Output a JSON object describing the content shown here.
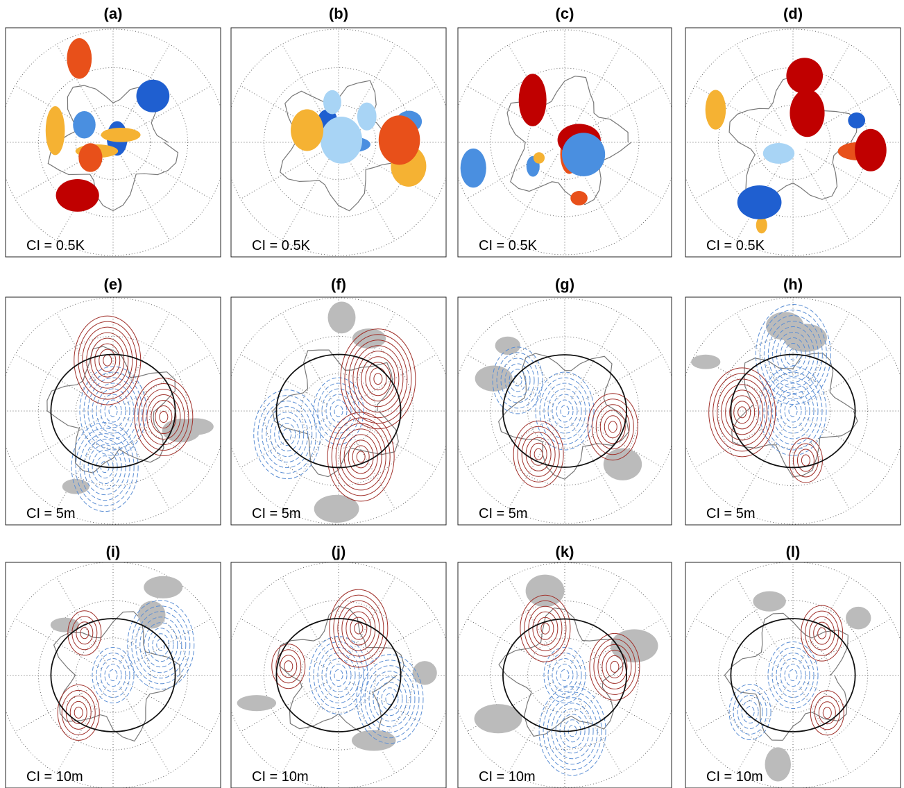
{
  "panels": [
    {
      "label": "(a)",
      "ci": "CI = 0.5K"
    },
    {
      "label": "(b)",
      "ci": "CI = 0.5K"
    },
    {
      "label": "(c)",
      "ci": "CI = 0.5K"
    },
    {
      "label": "(d)",
      "ci": "CI = 0.5K"
    },
    {
      "label": "(e)",
      "ci": "CI = 5m"
    },
    {
      "label": "(f)",
      "ci": "CI = 5m"
    },
    {
      "label": "(g)",
      "ci": "CI = 5m"
    },
    {
      "label": "(h)",
      "ci": "CI = 5m"
    },
    {
      "label": "(i)",
      "ci": "CI = 10m"
    },
    {
      "label": "(j)",
      "ci": "CI = 10m"
    },
    {
      "label": "(k)",
      "ci": "CI = 10m"
    },
    {
      "label": "(l)",
      "ci": "CI = 10m"
    }
  ]
}
